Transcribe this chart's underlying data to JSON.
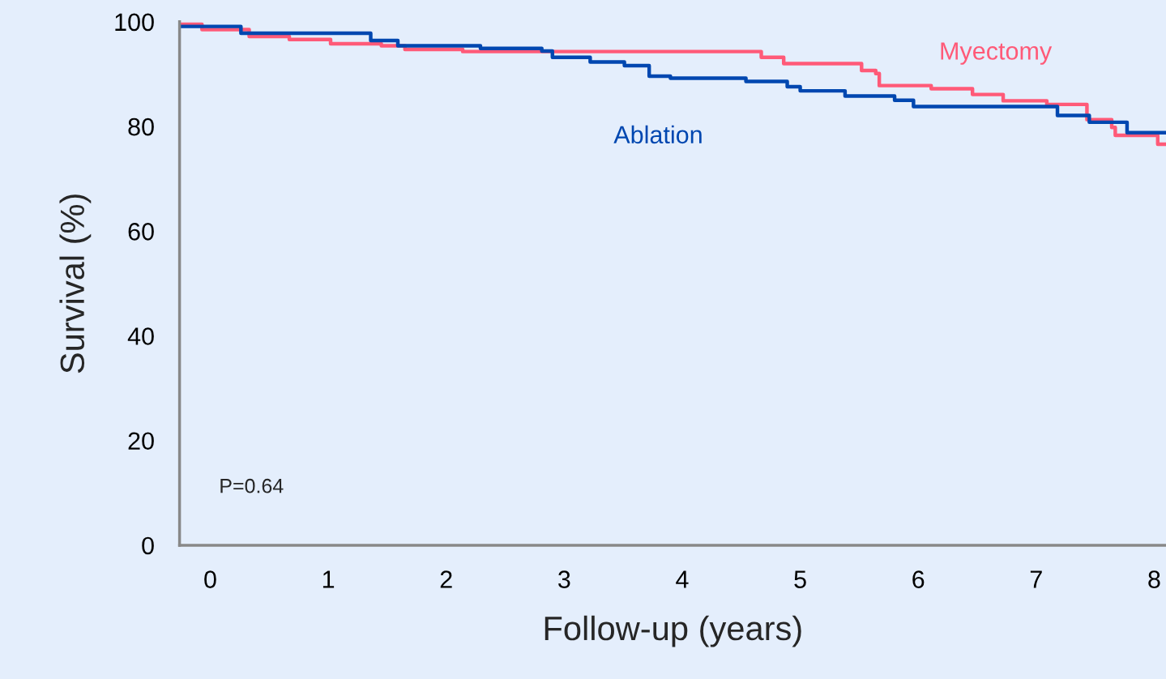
{
  "chart_data": {
    "type": "step",
    "xlabel": "Follow-up (years)",
    "ylabel": "Survival (%)",
    "xlim": [
      -0.26,
      8.1
    ],
    "ylim": [
      0,
      100
    ],
    "xticks": [
      0,
      1,
      2,
      3,
      4,
      5,
      6,
      7,
      8
    ],
    "yticks": [
      0,
      20,
      40,
      60,
      80,
      100
    ],
    "grid": false,
    "legend": false,
    "line_style": "solid",
    "marker": "none",
    "annotations": [
      "P=0.64"
    ],
    "series": [
      {
        "name": "Myectomy",
        "color": "#ff5a78",
        "x": [
          -0.26,
          -0.07,
          0.33,
          0.67,
          1.02,
          1.45,
          1.65,
          2.14,
          4.67,
          4.86,
          5.52,
          5.64,
          5.67,
          6.11,
          6.46,
          6.72,
          7.09,
          7.43,
          7.64,
          7.67,
          8.03,
          8.1
        ],
        "values": [
          99.5,
          98.5,
          97.2,
          96.6,
          95.8,
          95.4,
          94.7,
          94.3,
          93.2,
          92.0,
          90.7,
          90.1,
          87.8,
          87.2,
          86.1,
          84.9,
          84.2,
          81.3,
          79.8,
          78.3,
          76.6,
          76.6
        ]
      },
      {
        "name": "Ablation",
        "color": "#0047b0",
        "x": [
          -0.26,
          0.26,
          1.36,
          1.59,
          2.29,
          2.81,
          2.9,
          3.22,
          3.51,
          3.72,
          3.9,
          4.54,
          4.89,
          5.0,
          5.38,
          5.8,
          5.96,
          7.18,
          7.45,
          7.77,
          8.1
        ],
        "values": [
          99.1,
          97.8,
          96.4,
          95.4,
          94.9,
          94.4,
          93.2,
          92.3,
          91.6,
          89.6,
          89.2,
          88.6,
          87.6,
          86.8,
          85.8,
          85.0,
          83.8,
          82.1,
          80.8,
          78.8,
          78.8
        ]
      }
    ]
  }
}
